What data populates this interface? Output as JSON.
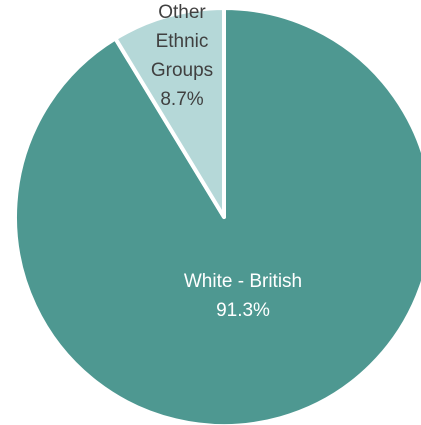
{
  "chart_data": {
    "type": "pie",
    "title": "",
    "slices": [
      {
        "label_lines": [
          "White - British",
          "91.3%"
        ],
        "category": "White - British",
        "value": 91.3,
        "color": "#4e9891",
        "text_color": "#ffffff"
      },
      {
        "label_lines": [
          "Other",
          "Ethnic",
          "Groups",
          "8.7%"
        ],
        "category": "Other Ethnic Groups",
        "value": 8.7,
        "color": "#b5d8d8",
        "text_color": "#404040"
      }
    ],
    "slice_border_color": "#ffffff",
    "legend": "none"
  }
}
